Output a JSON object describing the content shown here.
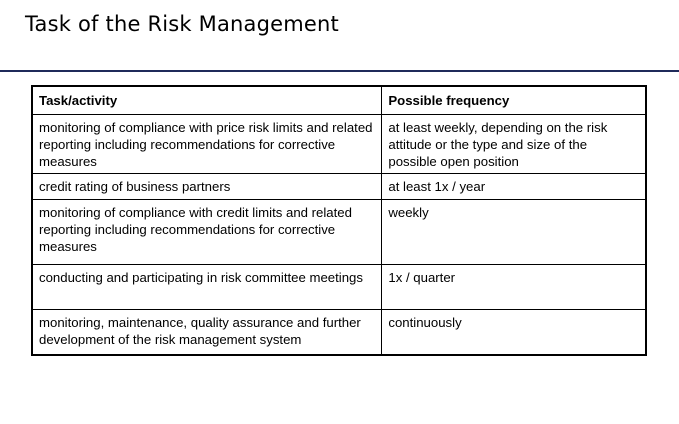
{
  "page": {
    "title": "Task of the Risk Management"
  },
  "table": {
    "headers": [
      "Task/activity",
      "Possible frequency"
    ],
    "rows": [
      [
        "monitoring of compliance with price risk limits and related reporting including recommendations for corrective measures",
        "at least weekly, depending on the risk attitude or the type and size of the possible open position"
      ],
      [
        "credit rating of business partners",
        "at least 1x / year"
      ],
      [
        "monitoring of compliance with credit limits and related reporting including recommendations for corrective measures",
        "weekly"
      ],
      [
        "conducting and participating in risk committee meetings",
        "1x / quarter"
      ],
      [
        "monitoring, maintenance, quality assurance and further development of the risk management system",
        "continuously"
      ]
    ]
  },
  "colors": {
    "rule": "#1f2a5a"
  }
}
